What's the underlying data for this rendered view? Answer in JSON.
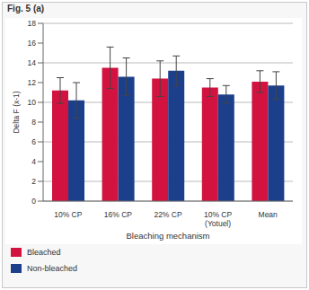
{
  "chart_data": {
    "type": "bar",
    "title": "Fig. 5 (a)",
    "x_label": "Bleaching mechanism",
    "y_label": "Delta F (x-1)",
    "categories": [
      "10% CP",
      "16% CP",
      "22% CP",
      "10% CP (Yotuel)",
      "Mean"
    ],
    "series": [
      {
        "name": "Bleached",
        "color": "#d2133f",
        "values": [
          11.2,
          13.5,
          12.4,
          11.5,
          12.1
        ],
        "errors": [
          1.3,
          2.1,
          1.8,
          0.9,
          1.1
        ]
      },
      {
        "name": "Non-bleached",
        "color": "#1c3f8c",
        "values": [
          10.2,
          12.6,
          13.2,
          10.8,
          11.7
        ],
        "errors": [
          1.8,
          1.9,
          1.5,
          0.9,
          1.4
        ]
      }
    ],
    "ylim": [
      0,
      18
    ],
    "yticks": [
      0,
      2,
      4,
      6,
      8,
      10,
      12,
      14,
      16,
      18
    ],
    "grid": true,
    "legend": "lower left"
  }
}
